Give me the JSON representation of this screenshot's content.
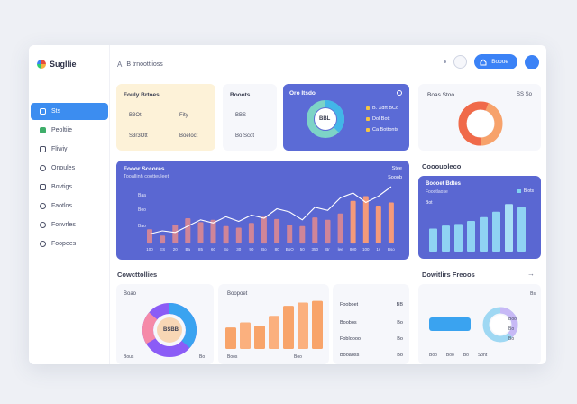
{
  "app": {
    "logo_text": "Sugllie"
  },
  "sidebar": {
    "items": [
      {
        "label": "Sts",
        "icon": "home-icon",
        "active": true
      },
      {
        "label": "Peoltiie",
        "icon": "folder-icon"
      },
      {
        "label": "Fliwiy",
        "icon": "chart-icon"
      },
      {
        "label": "Onoules",
        "icon": "users-icon"
      },
      {
        "label": "Bovtigs",
        "icon": "layers-icon"
      },
      {
        "label": "Faotlos",
        "icon": "box-icon"
      },
      {
        "label": "Fonvrles",
        "icon": "calendar-icon"
      },
      {
        "label": "Foopees",
        "icon": "settings-icon"
      }
    ]
  },
  "topbar": {
    "crumb_prefix": "A",
    "crumb_text": "B trnoottiioss",
    "primary_button": "Boooe"
  },
  "card_summary1": {
    "title": "Fouly Brtoes",
    "rows": [
      {
        "k": "B3Ot",
        "v": "Fity"
      },
      {
        "k": "S3r3Ott",
        "v": "BoeIoct"
      }
    ]
  },
  "card_summary2": {
    "title": "Booots",
    "rows": [
      {
        "v": "BBS"
      },
      {
        "v": "Bo Scot"
      }
    ]
  },
  "card_donut_blue": {
    "title": "Oro Itsdo",
    "center": "BBL",
    "legend": [
      {
        "label": "B. Xdrt BCo",
        "color": "#f5c542"
      },
      {
        "label": "Dol Bott",
        "color": "#f5c542"
      },
      {
        "label": "Ca Bottonts",
        "color": "#f5c542"
      }
    ]
  },
  "card_donut_orange": {
    "title": "Boas Stoo",
    "badge": "SS So"
  },
  "main_chart": {
    "title": "Fooor Sccores",
    "subtitle": "Tooallinh cootteuleet",
    "right_labels": [
      "Stee",
      "Sooob"
    ],
    "y_ticks": [
      "Baa",
      "Boo",
      "Bao"
    ],
    "x_ticks": [
      "100",
      "ES",
      "20",
      "Ba",
      "85",
      "60",
      "Bo",
      "30",
      "90",
      "Bo",
      "80",
      "BoO",
      "50",
      "350",
      "Br",
      "lee",
      "800",
      "100",
      "1s",
      "Bso"
    ]
  },
  "chart_data": {
    "type": "bar",
    "categories": [
      "100",
      "ES",
      "20",
      "Ba",
      "85",
      "60",
      "Bo",
      "30",
      "90",
      "Bo",
      "80",
      "BoO",
      "50",
      "350",
      "Br",
      "lee",
      "800",
      "100",
      "1s",
      "Bso"
    ],
    "series": [
      {
        "values": [
          18,
          10,
          24,
          32,
          27,
          30,
          22,
          20,
          26,
          34,
          31,
          24,
          22,
          33,
          30,
          38,
          54,
          60,
          48,
          52
        ]
      }
    ],
    "line": [
      12,
      16,
      14,
      22,
      30,
      26,
      34,
      28,
      36,
      32,
      44,
      40,
      30,
      46,
      42,
      58,
      64,
      52,
      60,
      72
    ],
    "ylim": [
      0,
      80
    ]
  },
  "right_panel": {
    "title": "Cooouoleco",
    "card_title": "Boooet Bdtes",
    "card_sub": "Foootlaose",
    "badge": "Biots",
    "label": "Bot",
    "bars": [
      30,
      34,
      36,
      40,
      45,
      52,
      62,
      58
    ]
  },
  "bottom_left": {
    "title": "Cowcttollies",
    "donut_label": "Boao",
    "donut_center": "BSBB",
    "foot_left": "Bous",
    "foot_right": "Bo",
    "bars_label": "Boopoet",
    "bars": [
      26,
      32,
      28,
      40,
      52,
      56,
      58
    ],
    "bars_foot_left": "Boos",
    "bars_foot_right": "Boo",
    "list": [
      {
        "k": "Fooboet",
        "v": "BB"
      },
      {
        "k": "Boobos",
        "v": "Bo"
      },
      {
        "k": "Fobloooo",
        "v": "Bo"
      },
      {
        "k": "Booaoss",
        "v": "Bo"
      }
    ]
  },
  "bottom_right": {
    "title": "Dowitlirs Freoos",
    "top_right": "Bs",
    "legend": [
      "Boo",
      "Bo",
      "Bo"
    ],
    "foot": [
      "Boo",
      "Boo",
      "Bo",
      "Sont"
    ]
  }
}
